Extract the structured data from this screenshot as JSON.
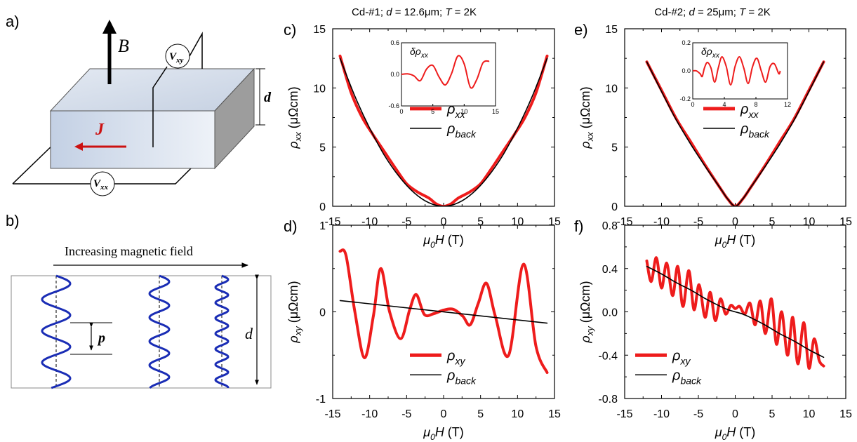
{
  "panels": {
    "a": {
      "label": "a)",
      "B": "B",
      "J": "J",
      "d": "d",
      "Vxy": {
        "main": "V",
        "sub": "xy"
      },
      "Vxx": {
        "main": "V",
        "sub": "xx"
      }
    },
    "b": {
      "label": "b)",
      "title": "Increasing  magnetic  field",
      "p": "p",
      "d": "d"
    },
    "c": {
      "label": "c)"
    },
    "d": {
      "label": "d)"
    },
    "e": {
      "label": "e)"
    },
    "f": {
      "label": "f)"
    }
  },
  "headers": {
    "left": {
      "prefix": "Cd-#1; ",
      "d_sym": "d",
      "d_val": " = 12.6",
      "unit": "μm",
      "sep": "; ",
      "T_sym": "T",
      "T_val": " = 2K"
    },
    "right": {
      "prefix": "Cd-#2; ",
      "d_sym": "d",
      "d_val": " = 25",
      "unit": "μm",
      "sep": "; ",
      "T_sym": "T",
      "T_val": " = 2K"
    }
  },
  "axis_text": {
    "rho": "ρ",
    "sub_xx": "xx",
    "sub_xy": "xy",
    "unit": " (μΩcm)",
    "mu": "μ",
    "zero": "0",
    "H": "H",
    "T_unit": " (T)",
    "delta": "δρ",
    "back": "back"
  },
  "colors": {
    "red": "#ee1c1c",
    "black": "#000000",
    "blue": "#1a2db5",
    "box_front": "#c9d5e6",
    "box_top": "#dde5f0",
    "box_side": "#9a9a9a"
  },
  "chart_data": [
    {
      "id": "c",
      "type": "line",
      "title": "Cd-#1; d = 12.6μm; T = 2K",
      "xlabel": "μ0H (T)",
      "ylabel": "ρxx (μΩcm)",
      "xlim": [
        -15,
        15
      ],
      "ylim": [
        0,
        15
      ],
      "xticks": [
        "-15",
        "-10",
        "-5",
        "0",
        "5",
        "10",
        "15"
      ],
      "yticks": [
        "0",
        "5",
        "10",
        "15"
      ],
      "legend": [
        "ρxx",
        "ρback"
      ],
      "series": [
        {
          "name": "ρxx",
          "color": "#ee1c1c",
          "x": [
            -14,
            -12.5,
            -11,
            -9.5,
            -8,
            -6.5,
            -5,
            -3.5,
            -2,
            -1,
            0,
            1,
            2,
            3.5,
            5,
            6.5,
            8,
            9.5,
            11,
            12.5,
            14
          ],
          "y": [
            12.7,
            9.6,
            7.5,
            6.0,
            4.6,
            3.2,
            1.9,
            1.2,
            0.7,
            0.2,
            0.0,
            0.2,
            0.7,
            1.2,
            1.9,
            3.2,
            4.6,
            6.0,
            7.5,
            9.6,
            12.7
          ]
        },
        {
          "name": "ρback",
          "color": "#000000",
          "x": [
            -14,
            -12,
            -10,
            -8,
            -6,
            -4,
            -2,
            0,
            2,
            4,
            6,
            8,
            10,
            12,
            14
          ],
          "y": [
            12.5,
            9.3,
            6.6,
            4.3,
            2.5,
            1.15,
            0.3,
            0.0,
            0.3,
            1.15,
            2.5,
            4.3,
            6.6,
            9.3,
            12.5
          ]
        }
      ],
      "inset": {
        "ylabel": "δρxx",
        "xlim": [
          0,
          15
        ],
        "ylim": [
          -0.6,
          0.6
        ],
        "xticks": [
          "0",
          "5",
          "10",
          "15"
        ],
        "yticks": [
          "-0.6",
          "0.0",
          "0.6"
        ],
        "series": {
          "name": "δρxx",
          "x": [
            0,
            1,
            2,
            3,
            4,
            5,
            6,
            7,
            8,
            9,
            10,
            11,
            12,
            13,
            14
          ],
          "y": [
            0.0,
            0.01,
            -0.03,
            -0.12,
            0.1,
            0.17,
            -0.05,
            -0.2,
            0.02,
            0.35,
            0.2,
            -0.25,
            -0.1,
            0.22,
            0.25
          ]
        }
      }
    },
    {
      "id": "d",
      "type": "line",
      "xlabel": "μ0H (T)",
      "ylabel": "ρxy (μΩcm)",
      "xlim": [
        -15,
        15
      ],
      "ylim": [
        -1,
        1
      ],
      "xticks": [
        "-15",
        "-10",
        "-5",
        "0",
        "5",
        "10",
        "15"
      ],
      "yticks": [
        "-1",
        "0",
        "1"
      ],
      "legend": [
        "ρxy",
        "ρback"
      ],
      "series": [
        {
          "name": "ρxy",
          "color": "#ee1c1c",
          "x": [
            -14,
            -13.2,
            -12,
            -10.7,
            -9.5,
            -8.5,
            -7.3,
            -5.8,
            -4.6,
            -3.7,
            -2.6,
            -1.3,
            0,
            1.3,
            2.6,
            3.6,
            4.7,
            5.8,
            7,
            8.8,
            10.8,
            12.5,
            14
          ],
          "y": [
            0.7,
            0.65,
            0.0,
            -0.53,
            -0.05,
            0.5,
            0.0,
            -0.31,
            0.02,
            0.2,
            -0.03,
            -0.02,
            0.02,
            0.03,
            -0.05,
            -0.15,
            0.1,
            0.33,
            -0.05,
            -0.5,
            0.55,
            -0.4,
            -0.7
          ]
        },
        {
          "name": "ρback",
          "color": "#000000",
          "x": [
            -14,
            14
          ],
          "y": [
            0.13,
            -0.13
          ]
        }
      ]
    },
    {
      "id": "e",
      "type": "line",
      "title": "Cd-#2; d = 25μm; T = 2K",
      "xlabel": "μ0H (T)",
      "ylabel": "ρxx (μΩcm)",
      "xlim": [
        -15,
        15
      ],
      "ylim": [
        0,
        15
      ],
      "xticks": [
        "-15",
        "-10",
        "-5",
        "0",
        "5",
        "10",
        "15"
      ],
      "yticks": [
        "0",
        "5",
        "10",
        "15"
      ],
      "legend": [
        "ρxx",
        "ρback"
      ],
      "series": [
        {
          "name": "ρxx",
          "color": "#ee1c1c",
          "x": [
            -12,
            -10,
            -8,
            -6,
            -4,
            -2,
            -1,
            0,
            1,
            2,
            4,
            6,
            8,
            10,
            12
          ],
          "y": [
            12.2,
            9.8,
            7.4,
            5.4,
            3.4,
            1.5,
            0.6,
            0.0,
            0.6,
            1.5,
            3.4,
            5.4,
            7.4,
            9.8,
            12.2
          ]
        },
        {
          "name": "ρback",
          "color": "#000000",
          "x": [
            -12,
            -10,
            -8,
            -6,
            -4,
            -2,
            -1,
            0,
            1,
            2,
            4,
            6,
            8,
            10,
            12
          ],
          "y": [
            12.2,
            9.7,
            7.3,
            5.2,
            3.3,
            1.5,
            0.6,
            0.0,
            0.6,
            1.5,
            3.3,
            5.2,
            7.3,
            9.7,
            12.2
          ]
        }
      ],
      "inset": {
        "ylabel": "δρxx",
        "xlim": [
          0,
          13
        ],
        "ylim": [
          -0.2,
          0.2
        ],
        "xticks": [
          "0",
          "4",
          "8",
          "12"
        ],
        "yticks": [
          "-0.2",
          "0.0",
          "0.2"
        ],
        "series": {
          "name": "δρxx",
          "x": [
            0,
            0.5,
            1,
            1.3,
            1.6,
            2.0,
            2.5,
            3.0,
            3.5,
            4.0,
            4.6,
            5.2,
            5.8,
            6.4,
            7.0,
            7.6,
            8.2,
            8.8,
            9.4,
            10.0,
            10.6,
            11.2,
            11.8,
            12.0
          ],
          "y": [
            0.0,
            0.0,
            -0.02,
            -0.04,
            0.02,
            0.06,
            0.02,
            -0.08,
            0.02,
            0.1,
            0.03,
            -0.1,
            0.03,
            0.1,
            0.02,
            -0.09,
            0.03,
            0.09,
            0.0,
            -0.08,
            0.03,
            0.05,
            -0.02,
            0.0
          ]
        }
      }
    },
    {
      "id": "f",
      "type": "line",
      "xlabel": "μ0H (T)",
      "ylabel": "ρxy (μΩcm)",
      "xlim": [
        -15,
        15
      ],
      "ylim": [
        -0.8,
        0.8
      ],
      "xticks": [
        "-15",
        "-10",
        "-5",
        "0",
        "5",
        "10",
        "15"
      ],
      "yticks": [
        "-0.8",
        "-0.4",
        "0.0",
        "0.4",
        "0.8"
      ],
      "legend": [
        "ρxy",
        "ρback"
      ],
      "series": [
        {
          "name": "ρxy",
          "color": "#ee1c1c",
          "x": [
            -12,
            -11.4,
            -10.7,
            -10.0,
            -9.3,
            -8.5,
            -7.8,
            -7.1,
            -6.3,
            -5.6,
            -4.9,
            -4.1,
            -3.4,
            -2.7,
            -2.0,
            -1.3,
            -0.6,
            0,
            0.6,
            1.3,
            2.0,
            2.7,
            3.4,
            4.1,
            4.9,
            5.6,
            6.3,
            7.1,
            7.8,
            8.5,
            9.3,
            10.0,
            10.7,
            11.4,
            12
          ],
          "y": [
            0.47,
            0.28,
            0.5,
            0.22,
            0.45,
            0.15,
            0.42,
            0.05,
            0.38,
            0.02,
            0.25,
            -0.05,
            0.18,
            -0.08,
            0.12,
            -0.02,
            0.06,
            0.03,
            0.05,
            -0.02,
            0.08,
            -0.12,
            0.1,
            -0.2,
            0.12,
            -0.3,
            0.0,
            -0.4,
            -0.05,
            -0.48,
            -0.1,
            -0.52,
            -0.25,
            -0.45,
            -0.5
          ]
        },
        {
          "name": "ρback",
          "color": "#000000",
          "x": [
            -12,
            -10,
            -8,
            -6,
            -4,
            -2,
            -1,
            0,
            1,
            2,
            4,
            6,
            8,
            10,
            12
          ],
          "y": [
            0.42,
            0.35,
            0.27,
            0.2,
            0.12,
            0.05,
            0.02,
            0.0,
            -0.02,
            -0.05,
            -0.12,
            -0.2,
            -0.27,
            -0.35,
            -0.42
          ]
        }
      ]
    }
  ]
}
